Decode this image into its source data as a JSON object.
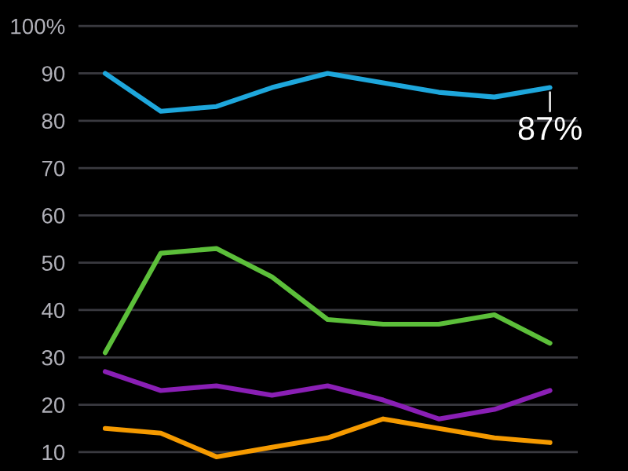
{
  "chart_data": {
    "type": "line",
    "categories": [
      null,
      null,
      null,
      null,
      null,
      null,
      null,
      null,
      null
    ],
    "series": [
      {
        "color": "#1ea7dc",
        "values": [
          90,
          82,
          83,
          87,
          90,
          88,
          86,
          85,
          87
        ],
        "value_labels": [
          null,
          null,
          null,
          null,
          null,
          null,
          null,
          null,
          "87%"
        ]
      },
      {
        "color": "#5cbf3a",
        "values": [
          31,
          52,
          53,
          47,
          38,
          37,
          37,
          39,
          33
        ]
      },
      {
        "color": "#8a1fb5",
        "values": [
          27,
          23,
          24,
          22,
          24,
          21,
          17,
          19,
          23
        ]
      },
      {
        "color": "#f59a00",
        "values": [
          15,
          14,
          9,
          11,
          13,
          17,
          15,
          13,
          12
        ]
      }
    ],
    "ylim": [
      6,
      105.5
    ],
    "yticks": [
      {
        "value": 100,
        "label": "100%"
      },
      90,
      80,
      70,
      60,
      50,
      40,
      30,
      20,
      10
    ],
    "grid": "y",
    "legend": false,
    "tick_labels": "y",
    "marker": "none",
    "line_style": "solid"
  }
}
